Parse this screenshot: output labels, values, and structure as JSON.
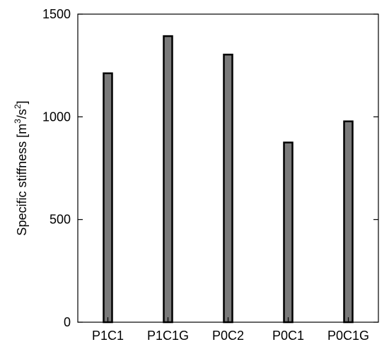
{
  "chart_data": {
    "type": "bar",
    "title": "",
    "xlabel": "",
    "ylabel": "Specific stiffness [m",
    "ylabel_sup1": "3",
    "ylabel_mid": "/s",
    "ylabel_sup2": "2",
    "ylabel_end": "]",
    "categories": [
      "P1C1",
      "P1C1G",
      "P0C2",
      "P0C1",
      "P0C1G"
    ],
    "values": [
      1212,
      1393,
      1303,
      875,
      978
    ],
    "ylim": [
      0,
      1500
    ],
    "yticks": [
      0,
      500,
      1000,
      1500
    ],
    "grid": false,
    "legend": "none",
    "bar_fill": "#7a7a7a",
    "bar_stroke": "#000000"
  }
}
